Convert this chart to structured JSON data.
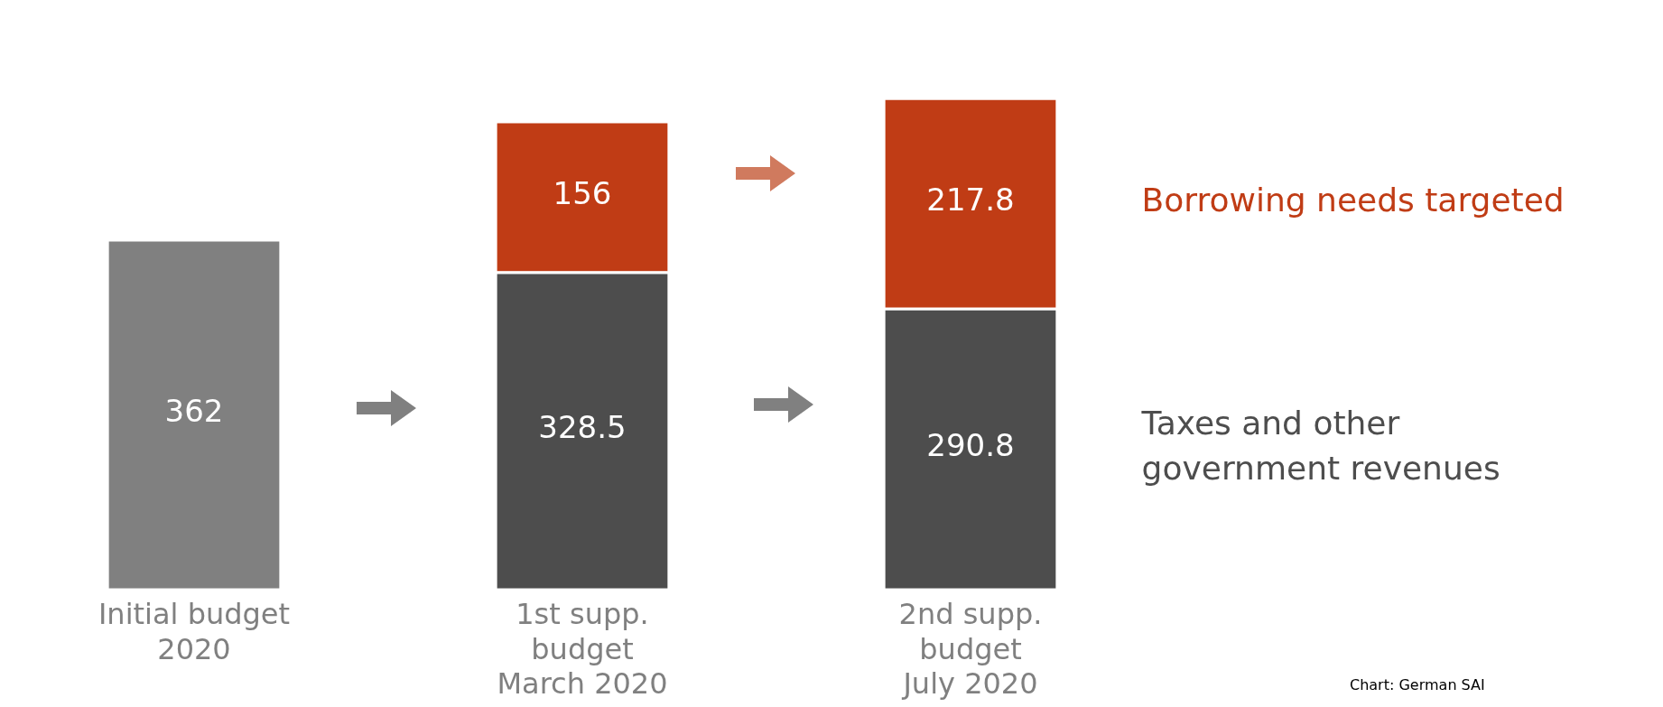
{
  "chart_data": {
    "type": "bar",
    "stacked": true,
    "categories": [
      "Initial budget\n2020",
      "1st supp.\nbudget\nMarch 2020",
      "2nd supp.\nbudget\nJuly 2020"
    ],
    "series": [
      {
        "name": "Taxes and other\ngovernment revenues",
        "color": "#4d4d4d",
        "colors": [
          "#808080",
          "#4d4d4d",
          "#4d4d4d"
        ],
        "values": [
          362,
          328.5,
          290.8
        ]
      },
      {
        "name": "Borrowing needs targeted",
        "color": "#c03c15",
        "values": [
          null,
          156,
          217.8
        ]
      }
    ],
    "data_labels": true,
    "legend": false,
    "grid": false,
    "annotations": [
      "Chart: German SAI"
    ]
  }
}
